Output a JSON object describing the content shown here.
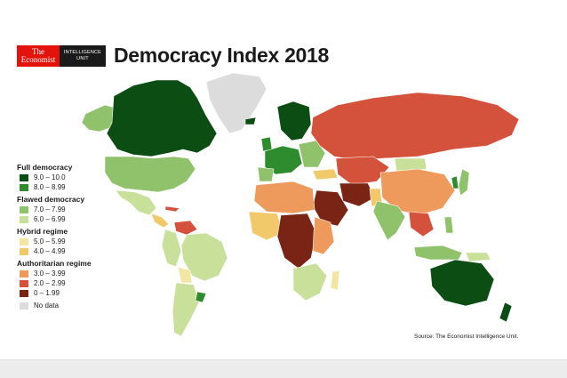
{
  "logo": {
    "brand_line1": "The",
    "brand_line2": "Economist",
    "unit_line1": "INTELLIGENCE",
    "unit_line2": "UNIT"
  },
  "title": "Democracy Index 2018",
  "legend": {
    "groups": [
      {
        "heading": "Full democracy",
        "items": [
          {
            "label": "9.0 – 10.0",
            "color": "#0b4d12"
          },
          {
            "label": "8.0 – 8.99",
            "color": "#2e8b2e"
          }
        ]
      },
      {
        "heading": "Flawed democracy",
        "items": [
          {
            "label": "7.0 – 7.99",
            "color": "#8fc26a"
          },
          {
            "label": "6.0 – 6.99",
            "color": "#c9e09b"
          }
        ]
      },
      {
        "heading": "Hybrid regime",
        "items": [
          {
            "label": "5.0 – 5.99",
            "color": "#f3e6a3"
          },
          {
            "label": "4.0 – 4.99",
            "color": "#f1c96a"
          }
        ]
      },
      {
        "heading": "Authoritarian regime",
        "items": [
          {
            "label": "3.0 – 3.99",
            "color": "#ee9a5c"
          },
          {
            "label": "2.0 – 2.99",
            "color": "#d4513b"
          },
          {
            "label": "0 – 1.99",
            "color": "#7a2416"
          }
        ]
      }
    ],
    "no_data": {
      "label": "No data",
      "color": "#dcdcdc"
    }
  },
  "source": "Source: The Economist Intelligence Unit."
}
